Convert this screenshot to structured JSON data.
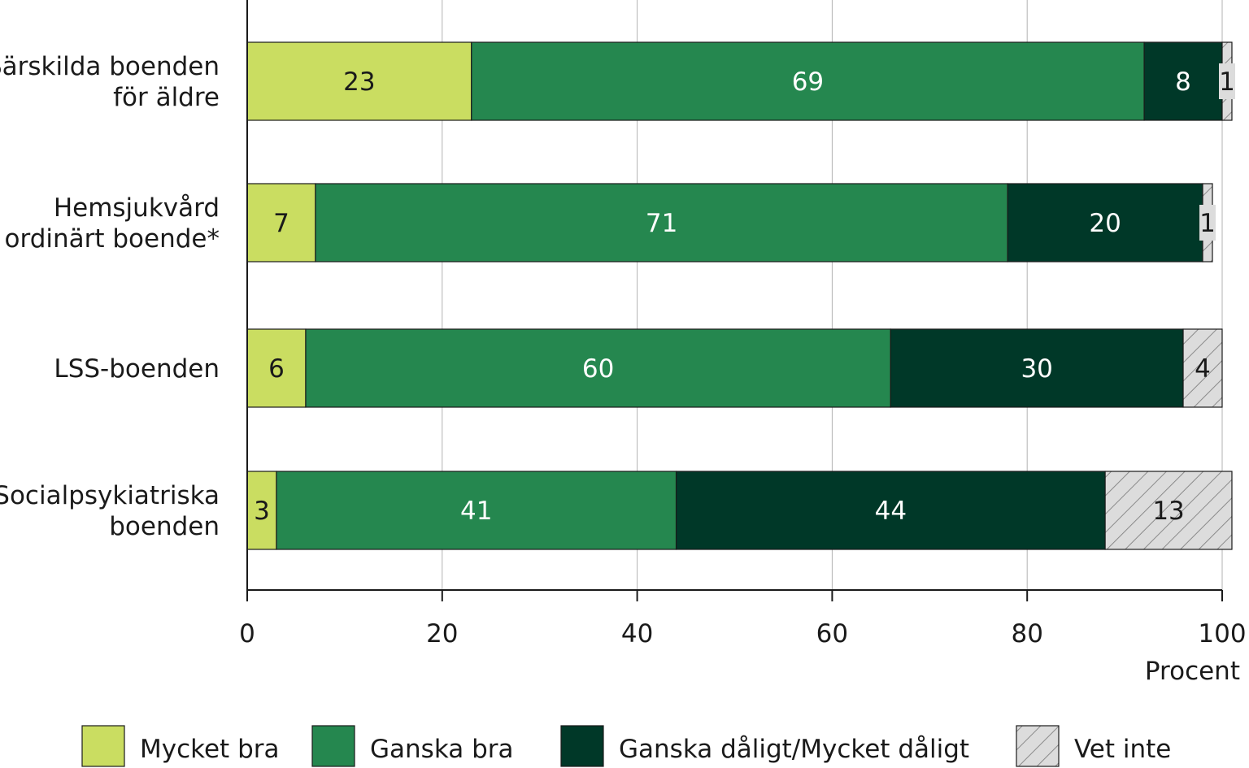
{
  "chart_data": {
    "type": "bar",
    "orientation": "horizontal",
    "stacked": true,
    "categories": [
      [
        "Särskilda boenden",
        "för äldre"
      ],
      [
        "Hemsjukvård",
        "i ordinärt boende*"
      ],
      [
        "LSS-boenden"
      ],
      [
        "Socialpsykiatriska",
        "boenden"
      ]
    ],
    "series": [
      {
        "name": "Mycket bra",
        "color": "#cadd61",
        "pattern": "none",
        "label_color": "#1a1a1a",
        "values": [
          23,
          7,
          6,
          3
        ]
      },
      {
        "name": "Ganska bra",
        "color": "#25874f",
        "pattern": "none",
        "label_color": "#ffffff",
        "values": [
          69,
          71,
          60,
          41
        ]
      },
      {
        "name": "Ganska dåligt/Mycket dåligt",
        "color": "#003828",
        "pattern": "none",
        "label_color": "#ffffff",
        "values": [
          8,
          20,
          30,
          44
        ]
      },
      {
        "name": "Vet inte",
        "color": "#dcdcdc",
        "pattern": "hatch",
        "label_color": "#1a1a1a",
        "values": [
          1,
          1,
          4,
          13
        ]
      }
    ],
    "xlim": [
      0,
      100
    ],
    "xticks": [
      0,
      20,
      40,
      60,
      80,
      100
    ],
    "xlabel": "Procent",
    "grid": true,
    "legend": "bottom"
  }
}
